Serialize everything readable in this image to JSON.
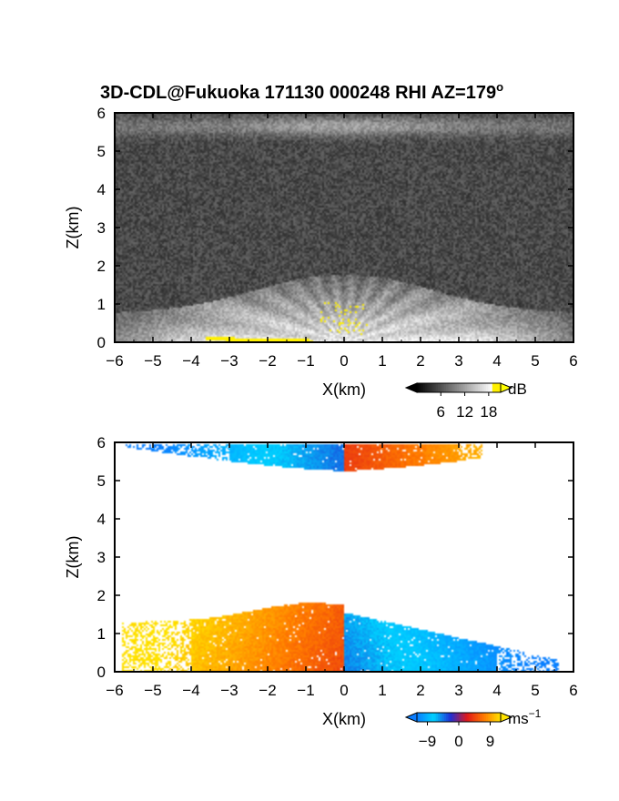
{
  "figure": {
    "title_main": "3D-CDL@Fukuoka 171130 000248 RHI AZ=179",
    "title_degree": "o"
  },
  "chart_data": [
    {
      "type": "heatmap",
      "name": "reflectivity",
      "xlabel": "X(km)",
      "ylabel": "Z(km)",
      "xlim": [
        -6,
        6
      ],
      "ylim": [
        0,
        6
      ],
      "x_ticks": [
        -6,
        -5,
        -4,
        -3,
        -2,
        -1,
        0,
        1,
        2,
        3,
        4,
        5,
        6
      ],
      "y_ticks": [
        0,
        1,
        2,
        3,
        4,
        5,
        6
      ],
      "grid": false,
      "colorbar": {
        "unit": "dB",
        "unit_sup": "",
        "ticks": [
          6,
          12,
          18
        ],
        "range": [
          0,
          21
        ],
        "colors": [
          "#000000",
          "#ffffff",
          "#ffff00"
        ]
      },
      "layers": [
        {
          "z_range": [
            0,
            1.8
          ],
          "x_range": [
            -6,
            6
          ],
          "level": "bright, peaks at x=0"
        },
        {
          "z_range": [
            5.2,
            6.0
          ],
          "x_range": [
            -6,
            6
          ],
          "level": "moderate, peaks at x=0"
        }
      ],
      "noise_level": "low background noise"
    },
    {
      "type": "heatmap",
      "name": "doppler_velocity",
      "xlabel": "X(km)",
      "ylabel": "Z(km)",
      "xlim": [
        -6,
        6
      ],
      "ylim": [
        0,
        6
      ],
      "x_ticks": [
        -6,
        -5,
        -4,
        -3,
        -2,
        -1,
        0,
        1,
        2,
        3,
        4,
        5,
        6
      ],
      "y_ticks": [
        0,
        1,
        2,
        3,
        4,
        5,
        6
      ],
      "grid": false,
      "colorbar": {
        "unit": "ms",
        "unit_sup": "-1",
        "ticks": [
          -9,
          0,
          9
        ],
        "range": [
          -12,
          12
        ],
        "colors": [
          "#0a7dff",
          "#00d2ff",
          "#1e2fd6",
          "#e01818",
          "#ff7a00",
          "#ffe400"
        ]
      },
      "layers": [
        {
          "z_range": [
            0,
            1.85
          ],
          "x_range": [
            -6,
            6
          ],
          "velocity": "positive for x<0 (red-orange-yellow), negative for x>0 (blue-cyan)"
        },
        {
          "z_range": [
            5.2,
            6.0
          ],
          "x_range": [
            -6,
            3.8
          ],
          "velocity": "negative for x<0 (blue), positive for x>0 (red-orange)"
        }
      ]
    }
  ]
}
